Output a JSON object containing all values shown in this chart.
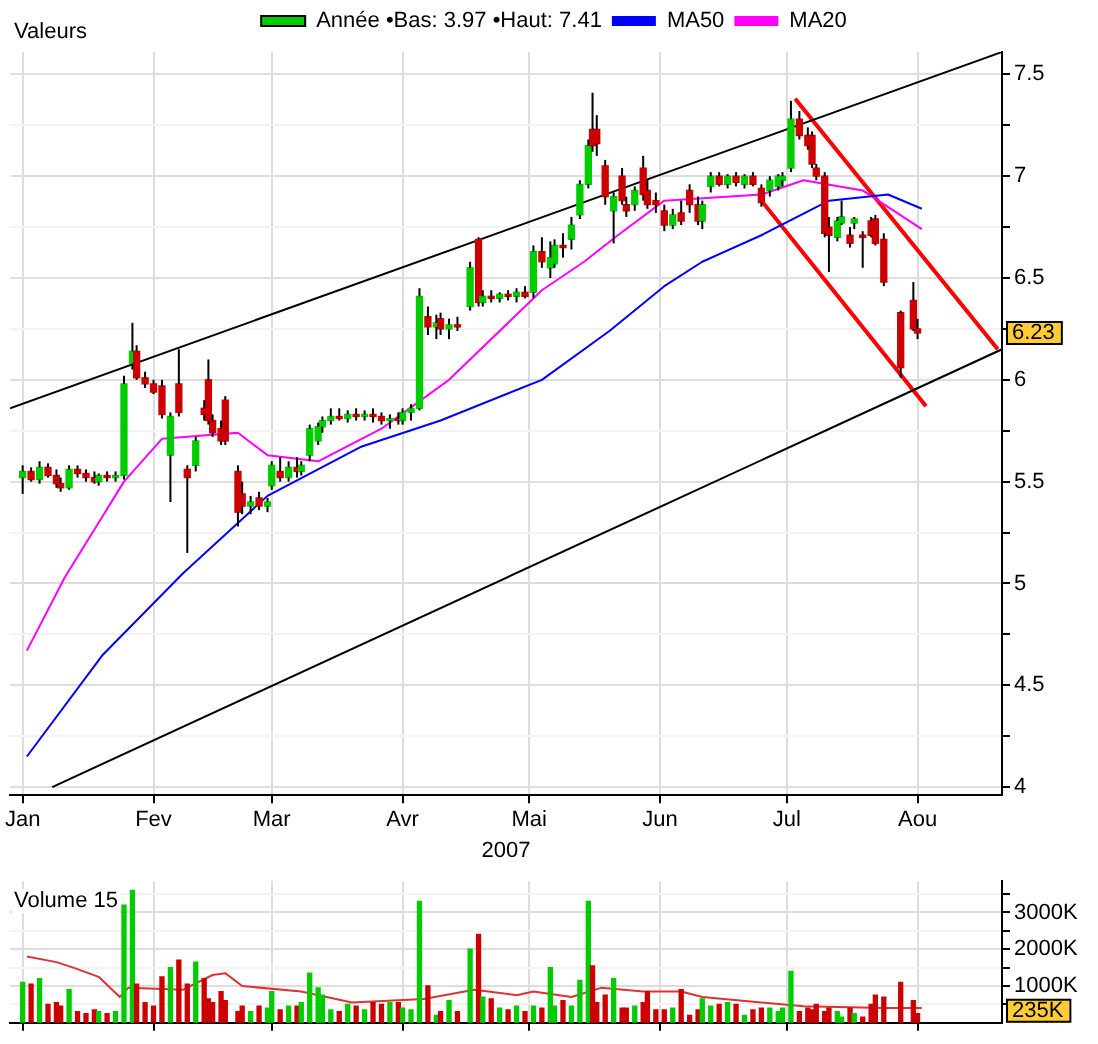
{
  "chart_data": [
    {
      "type": "candlestick",
      "title": "Valeurs",
      "xlabel": "2007",
      "legend": "top",
      "grid": true,
      "marker": "none",
      "xlim": [
        "2006-12-29",
        "2007-08-21"
      ],
      "xticks": [
        {
          "value": "2007-01-01",
          "label": "Jan"
        },
        {
          "value": "2007-02-01",
          "label": "Fev"
        },
        {
          "value": "2007-03-01",
          "label": "Mar"
        },
        {
          "value": "2007-04-01",
          "label": "Avr"
        },
        {
          "value": "2007-05-01",
          "label": "Mai"
        },
        {
          "value": "2007-06-01",
          "label": "Jun"
        },
        {
          "value": "2007-07-01",
          "label": "Jul"
        },
        {
          "value": "2007-08-01",
          "label": "Aou"
        }
      ],
      "ylim": [
        3.96,
        7.61
      ],
      "yticks": [
        4,
        {
          "value": 4.25,
          "label": null
        },
        4.5,
        {
          "value": 4.75,
          "label": null
        },
        5,
        {
          "value": 5.25,
          "label": null
        },
        5.5,
        {
          "value": 5.75,
          "label": null
        },
        6,
        {
          "value": 6.25,
          "label": null
        },
        6.5,
        {
          "value": 6.75,
          "label": null
        },
        7,
        {
          "value": 7.25,
          "label": null
        },
        7.5
      ],
      "annotations": [
        "6.23"
      ],
      "series": [
        {
          "name": "Année •Bas: 3.97 •Haut: 7.41",
          "color": "#000000",
          "colors": [
            "#00cc00",
            "#cc0000",
            "#00cc00",
            "#cc0000",
            "#cc0000",
            "#cc0000",
            "#00cc00",
            "#cc0000",
            "#cc0000",
            "#cc0000",
            "#00cc00",
            "#cc0000",
            "#00cc00",
            "#00cc00",
            "#00cc00",
            "#cc0000",
            "#cc0000",
            "#cc0000",
            "#cc0000",
            "#00cc00",
            "#cc0000",
            "#cc0000",
            "#00cc00",
            "#cc0000",
            "#cc0000",
            "#cc0000",
            "#cc0000",
            "#cc0000",
            "#cc0000",
            "#cc0000",
            "#00cc00",
            "#cc0000",
            "#00cc00",
            "#00cc00",
            "#cc0000",
            "#00cc00",
            "#cc0000",
            "#00cc00",
            "#00cc00",
            "#00cc00",
            "#00cc00",
            "#00cc00",
            "#cc0000",
            "#00cc00",
            "#cc0000",
            "#00cc00",
            "#cc0000",
            "#cc0000",
            "#00cc00",
            "#cc0000",
            "#00cc00",
            "#00cc00",
            "#00cc00",
            "#cc0000",
            "#00cc00",
            "#cc0000",
            "#00cc00",
            "#cc0000",
            "#00cc00",
            "#cc0000",
            "#00cc00",
            "#cc0000",
            "#00cc00",
            "#cc0000",
            "#00cc00",
            "#cc0000",
            "#00cc00",
            "#cc0000",
            "#00cc00",
            "#00cc00",
            "#cc0000",
            "#00cc00",
            "#00cc00",
            "#00cc00",
            "#cc0000",
            "#cc0000",
            "#cc0000",
            "#00cc00",
            "#cc0000",
            "#cc0000",
            "#00cc00",
            "#cc0000",
            "#cc0000",
            "#cc0000",
            "#cc0000",
            "#00cc00",
            "#cc0000",
            "#cc0000",
            "#cc0000",
            "#00cc00",
            "#00cc00",
            "#cc0000",
            "#00cc00",
            "#cc0000",
            "#00cc00",
            "#cc0000",
            "#cc0000",
            "#00cc00",
            "#00cc00",
            "#00cc00",
            "#00cc00",
            "#cc0000",
            "#cc0000",
            "#cc0000",
            "#cc0000",
            "#cc0000",
            "#cc0000",
            "#00cc00",
            "#00cc00",
            "#cc0000",
            "#00cc00",
            "#cc0000",
            "#cc0000",
            "#cc0000",
            "#cc0000",
            "#cc0000",
            "#cc0000",
            "#cc0000"
          ],
          "x": [
            "2007-01-01",
            "2007-01-03",
            "2007-01-05",
            "2007-01-07",
            "2007-01-09",
            "2007-01-10",
            "2007-01-12",
            "2007-01-14",
            "2007-01-16",
            "2007-01-18",
            "2007-01-19",
            "2007-01-21",
            "2007-01-23",
            "2007-01-25",
            "2007-01-27",
            "2007-01-28",
            "2007-01-30",
            "2007-02-01",
            "2007-02-03",
            "2007-02-05",
            "2007-02-07",
            "2007-02-09",
            "2007-02-11",
            "2007-02-13",
            "2007-02-14",
            "2007-02-15",
            "2007-02-17",
            "2007-02-18",
            "2007-02-21",
            "2007-02-22",
            "2007-02-24",
            "2007-02-26",
            "2007-02-28",
            "2007-03-01",
            "2007-03-03",
            "2007-03-05",
            "2007-03-07",
            "2007-03-08",
            "2007-03-10",
            "2007-03-12",
            "2007-03-13",
            "2007-03-15",
            "2007-03-17",
            "2007-03-19",
            "2007-03-21",
            "2007-03-23",
            "2007-03-25",
            "2007-03-27",
            "2007-03-29",
            "2007-03-31",
            "2007-04-01",
            "2007-04-03",
            "2007-04-05",
            "2007-04-07",
            "2007-04-09",
            "2007-04-10",
            "2007-04-12",
            "2007-04-14",
            "2007-04-17",
            "2007-04-19",
            "2007-04-20",
            "2007-04-22",
            "2007-04-24",
            "2007-04-26",
            "2007-04-28",
            "2007-04-30",
            "2007-05-02",
            "2007-05-04",
            "2007-05-06",
            "2007-05-07",
            "2007-05-09",
            "2007-05-11",
            "2007-05-13",
            "2007-05-15",
            "2007-05-16",
            "2007-05-17",
            "2007-05-19",
            "2007-05-21",
            "2007-05-23",
            "2007-05-24",
            "2007-05-26",
            "2007-05-28",
            "2007-05-29",
            "2007-05-31",
            "2007-06-02",
            "2007-06-04",
            "2007-06-06",
            "2007-06-08",
            "2007-06-10",
            "2007-06-11",
            "2007-06-13",
            "2007-06-15",
            "2007-06-17",
            "2007-06-19",
            "2007-06-21",
            "2007-06-23",
            "2007-06-25",
            "2007-06-27",
            "2007-06-29",
            "2007-06-30",
            "2007-07-02",
            "2007-07-04",
            "2007-07-06",
            "2007-07-07",
            "2007-07-08",
            "2007-07-10",
            "2007-07-11",
            "2007-07-13",
            "2007-07-14",
            "2007-07-16",
            "2007-07-17",
            "2007-07-19",
            "2007-07-21",
            "2007-07-22",
            "2007-07-24",
            "2007-07-28",
            "2007-07-31",
            "2007-08-01"
          ],
          "ohlc": [
            [
              5.52,
              5.58,
              5.44,
              5.55
            ],
            [
              5.55,
              5.57,
              5.5,
              5.51
            ],
            [
              5.51,
              5.6,
              5.49,
              5.57
            ],
            [
              5.57,
              5.59,
              5.52,
              5.53
            ],
            [
              5.53,
              5.56,
              5.47,
              5.49
            ],
            [
              5.49,
              5.52,
              5.45,
              5.47
            ],
            [
              5.47,
              5.58,
              5.46,
              5.56
            ],
            [
              5.56,
              5.58,
              5.52,
              5.54
            ],
            [
              5.54,
              5.56,
              5.5,
              5.52
            ],
            [
              5.52,
              5.55,
              5.49,
              5.5
            ],
            [
              5.5,
              5.54,
              5.48,
              5.53
            ],
            [
              5.53,
              5.55,
              5.5,
              5.52
            ],
            [
              5.52,
              5.55,
              5.5,
              5.53
            ],
            [
              5.53,
              6.02,
              5.51,
              5.98
            ],
            [
              6.08,
              6.28,
              6.05,
              6.14
            ],
            [
              6.14,
              6.17,
              6.0,
              6.01
            ],
            [
              6.01,
              6.04,
              5.96,
              5.98
            ],
            [
              5.98,
              6.0,
              5.93,
              5.94
            ],
            [
              5.97,
              6.0,
              5.81,
              5.83
            ],
            [
              5.63,
              5.84,
              5.4,
              5.82
            ],
            [
              5.98,
              6.15,
              5.82,
              5.84
            ],
            [
              5.56,
              5.58,
              5.15,
              5.52
            ],
            [
              5.58,
              5.72,
              5.55,
              5.7
            ],
            [
              5.86,
              5.9,
              5.8,
              5.83
            ],
            [
              6.0,
              6.1,
              5.78,
              5.8
            ],
            [
              5.8,
              5.83,
              5.72,
              5.74
            ],
            [
              5.76,
              5.8,
              5.68,
              5.7
            ],
            [
              5.9,
              5.92,
              5.68,
              5.7
            ],
            [
              5.55,
              5.58,
              5.28,
              5.35
            ],
            [
              5.44,
              5.5,
              5.34,
              5.38
            ],
            [
              5.38,
              5.43,
              5.34,
              5.4
            ],
            [
              5.42,
              5.45,
              5.36,
              5.38
            ],
            [
              5.38,
              5.42,
              5.35,
              5.4
            ],
            [
              5.48,
              5.6,
              5.46,
              5.58
            ],
            [
              5.55,
              5.62,
              5.5,
              5.52
            ],
            [
              5.52,
              5.6,
              5.5,
              5.57
            ],
            [
              5.57,
              5.62,
              5.52,
              5.55
            ],
            [
              5.55,
              5.6,
              5.53,
              5.58
            ],
            [
              5.63,
              5.78,
              5.6,
              5.76
            ],
            [
              5.7,
              5.79,
              5.68,
              5.77
            ],
            [
              5.77,
              5.82,
              5.74,
              5.8
            ],
            [
              5.8,
              5.86,
              5.78,
              5.82
            ],
            [
              5.82,
              5.86,
              5.8,
              5.81
            ],
            [
              5.81,
              5.85,
              5.79,
              5.83
            ],
            [
              5.83,
              5.86,
              5.8,
              5.82
            ],
            [
              5.82,
              5.85,
              5.8,
              5.83
            ],
            [
              5.83,
              5.86,
              5.79,
              5.82
            ],
            [
              5.82,
              5.84,
              5.78,
              5.8
            ],
            [
              5.8,
              5.83,
              5.76,
              5.81
            ],
            [
              5.81,
              5.84,
              5.78,
              5.8
            ],
            [
              5.8,
              5.86,
              5.78,
              5.84
            ],
            [
              5.84,
              5.88,
              5.8,
              5.86
            ],
            [
              5.86,
              6.45,
              5.85,
              6.41
            ],
            [
              6.31,
              6.36,
              6.22,
              6.26
            ],
            [
              6.26,
              6.32,
              6.2,
              6.28
            ],
            [
              6.3,
              6.33,
              6.22,
              6.25
            ],
            [
              6.25,
              6.3,
              6.2,
              6.27
            ],
            [
              6.27,
              6.31,
              6.24,
              6.26
            ],
            [
              6.36,
              6.58,
              6.34,
              6.55
            ],
            [
              6.69,
              6.7,
              6.36,
              6.38
            ],
            [
              6.38,
              6.44,
              6.36,
              6.41
            ],
            [
              6.41,
              6.44,
              6.38,
              6.4
            ],
            [
              6.4,
              6.43,
              6.38,
              6.42
            ],
            [
              6.42,
              6.44,
              6.39,
              6.41
            ],
            [
              6.41,
              6.45,
              6.38,
              6.43
            ],
            [
              6.43,
              6.46,
              6.4,
              6.41
            ],
            [
              6.43,
              6.66,
              6.4,
              6.63
            ],
            [
              6.63,
              6.7,
              6.55,
              6.58
            ],
            [
              6.55,
              6.68,
              6.5,
              6.6
            ],
            [
              6.57,
              6.69,
              6.55,
              6.66
            ],
            [
              6.66,
              6.72,
              6.6,
              6.65
            ],
            [
              6.69,
              6.8,
              6.64,
              6.76
            ],
            [
              6.81,
              6.98,
              6.79,
              6.96
            ],
            [
              6.96,
              7.18,
              6.94,
              7.15
            ],
            [
              7.23,
              7.41,
              7.12,
              7.15
            ],
            [
              7.23,
              7.3,
              7.1,
              7.16
            ],
            [
              7.05,
              7.08,
              6.86,
              6.9
            ],
            [
              6.83,
              6.92,
              6.67,
              6.9
            ],
            [
              7.0,
              7.04,
              6.86,
              6.88
            ],
            [
              6.86,
              6.9,
              6.8,
              6.83
            ],
            [
              6.86,
              6.95,
              6.83,
              6.93
            ],
            [
              7.04,
              7.1,
              6.88,
              6.91
            ],
            [
              6.93,
              6.98,
              6.84,
              6.86
            ],
            [
              6.88,
              6.92,
              6.82,
              6.86
            ],
            [
              6.83,
              6.86,
              6.73,
              6.76
            ],
            [
              6.76,
              6.84,
              6.74,
              6.81
            ],
            [
              6.82,
              6.88,
              6.76,
              6.78
            ],
            [
              6.93,
              6.96,
              6.82,
              6.86
            ],
            [
              6.86,
              6.9,
              6.76,
              6.78
            ],
            [
              6.78,
              6.88,
              6.74,
              6.86
            ],
            [
              6.95,
              7.02,
              6.92,
              7.0
            ],
            [
              7.0,
              7.02,
              6.95,
              6.96
            ],
            [
              6.96,
              7.01,
              6.94,
              7.0
            ],
            [
              7.0,
              7.02,
              6.95,
              6.97
            ],
            [
              6.96,
              7.01,
              6.94,
              7.0
            ],
            [
              7.0,
              7.02,
              6.95,
              6.96
            ],
            [
              6.94,
              6.96,
              6.85,
              6.87
            ],
            [
              6.93,
              7.0,
              6.9,
              6.98
            ],
            [
              6.95,
              7.01,
              6.93,
              7.0
            ],
            [
              6.98,
              7.02,
              6.95,
              7.0
            ],
            [
              7.04,
              7.37,
              7.02,
              7.28
            ],
            [
              7.28,
              7.32,
              7.18,
              7.2
            ],
            [
              7.2,
              7.24,
              7.13,
              7.15
            ],
            [
              7.2,
              7.22,
              7.04,
              7.06
            ],
            [
              7.04,
              7.06,
              6.98,
              7.0
            ],
            [
              7.0,
              7.02,
              6.7,
              6.72
            ],
            [
              6.75,
              6.8,
              6.53,
              6.71
            ],
            [
              6.7,
              6.8,
              6.68,
              6.78
            ],
            [
              6.77,
              6.88,
              6.76,
              6.8
            ],
            [
              6.71,
              6.75,
              6.65,
              6.67
            ],
            [
              6.77,
              6.8,
              6.74,
              6.79
            ],
            [
              6.71,
              6.73,
              6.55,
              6.7
            ],
            [
              6.78,
              6.8,
              6.7,
              6.71
            ],
            [
              6.79,
              6.81,
              6.66,
              6.67
            ],
            [
              6.69,
              6.72,
              6.46,
              6.48
            ],
            [
              6.33,
              6.34,
              6.01,
              6.06
            ],
            [
              6.39,
              6.48,
              6.24,
              6.25
            ],
            [
              6.25,
              6.3,
              6.2,
              6.23
            ]
          ]
        },
        {
          "type": "line",
          "name": "MA50",
          "color": "#0000ff",
          "x": [
            "2007-01-02",
            "2007-01-20",
            "2007-02-08",
            "2007-02-28",
            "2007-03-22",
            "2007-04-10",
            "2007-05-04",
            "2007-05-20",
            "2007-06-02",
            "2007-06-11",
            "2007-06-25",
            "2007-07-11",
            "2007-07-25",
            "2007-08-02"
          ],
          "values": [
            4.15,
            4.65,
            5.05,
            5.43,
            5.67,
            5.8,
            6.0,
            6.24,
            6.46,
            6.58,
            6.71,
            6.88,
            6.91,
            6.84
          ]
        },
        {
          "type": "line",
          "name": "MA20",
          "color": "#ff00ff",
          "x": [
            "2007-01-02",
            "2007-01-11",
            "2007-01-25",
            "2007-02-03",
            "2007-02-21",
            "2007-02-28",
            "2007-03-12",
            "2007-03-27",
            "2007-04-12",
            "2007-05-04",
            "2007-05-14",
            "2007-05-22",
            "2007-06-02",
            "2007-06-25",
            "2007-07-05",
            "2007-07-19",
            "2007-08-02"
          ],
          "values": [
            4.67,
            5.03,
            5.5,
            5.71,
            5.74,
            5.63,
            5.6,
            5.76,
            6.0,
            6.44,
            6.58,
            6.71,
            6.88,
            6.91,
            6.98,
            6.93,
            6.74
          ]
        },
        {
          "type": "line",
          "color": "#000000",
          "x": [
            "2006-12-29",
            "2007-08-21"
          ],
          "values": [
            5.86,
            7.61
          ]
        },
        {
          "type": "line",
          "color": "#000000",
          "x": [
            "2007-01-08",
            "2007-08-21"
          ],
          "values": [
            4.0,
            6.15
          ]
        },
        {
          "type": "line",
          "color": "#ff0000",
          "x": [
            "2007-07-03",
            "2007-08-20"
          ],
          "values": [
            7.38,
            6.15
          ]
        },
        {
          "type": "line",
          "color": "#ff0000",
          "x": [
            "2007-06-25",
            "2007-08-03"
          ],
          "values": [
            6.88,
            5.87
          ]
        }
      ]
    },
    {
      "type": "bar",
      "title": "Volume 15",
      "grid": true,
      "marker": "none",
      "tick_labels": "y",
      "xlim": [
        "2006-12-29",
        "2007-08-21"
      ],
      "xticks": [
        {
          "value": "2007-01-01",
          "label": null
        },
        {
          "value": "2007-02-01",
          "label": null
        },
        {
          "value": "2007-03-01",
          "label": null
        },
        {
          "value": "2007-04-01",
          "label": null
        },
        {
          "value": "2007-05-01",
          "label": null
        },
        {
          "value": "2007-06-01",
          "label": null
        },
        {
          "value": "2007-07-01",
          "label": null
        },
        {
          "value": "2007-08-01",
          "label": null
        }
      ],
      "ylim": [
        0,
        3850
      ],
      "yticks": [
        {
          "value": 500,
          "label": null
        },
        {
          "value": 1000,
          "label": "1000K"
        },
        {
          "value": 1500,
          "label": null
        },
        {
          "value": 2000,
          "label": "2000K"
        },
        {
          "value": 2500,
          "label": null
        },
        {
          "value": 3000,
          "label": "3000K"
        },
        {
          "value": 3500,
          "label": null
        }
      ],
      "annotations": [
        "235K"
      ],
      "series": [
        {
          "x": [
            "2007-01-01",
            "2007-01-03",
            "2007-01-05",
            "2007-01-07",
            "2007-01-09",
            "2007-01-10",
            "2007-01-12",
            "2007-01-14",
            "2007-01-16",
            "2007-01-18",
            "2007-01-19",
            "2007-01-21",
            "2007-01-23",
            "2007-01-25",
            "2007-01-27",
            "2007-01-28",
            "2007-01-30",
            "2007-02-01",
            "2007-02-03",
            "2007-02-05",
            "2007-02-07",
            "2007-02-09",
            "2007-02-11",
            "2007-02-13",
            "2007-02-14",
            "2007-02-15",
            "2007-02-17",
            "2007-02-18",
            "2007-02-21",
            "2007-02-22",
            "2007-02-24",
            "2007-02-26",
            "2007-02-28",
            "2007-03-01",
            "2007-03-03",
            "2007-03-05",
            "2007-03-07",
            "2007-03-08",
            "2007-03-10",
            "2007-03-12",
            "2007-03-13",
            "2007-03-15",
            "2007-03-17",
            "2007-03-19",
            "2007-03-21",
            "2007-03-23",
            "2007-03-25",
            "2007-03-27",
            "2007-03-29",
            "2007-03-31",
            "2007-04-01",
            "2007-04-03",
            "2007-04-05",
            "2007-04-07",
            "2007-04-09",
            "2007-04-10",
            "2007-04-12",
            "2007-04-14",
            "2007-04-17",
            "2007-04-19",
            "2007-04-20",
            "2007-04-22",
            "2007-04-24",
            "2007-04-26",
            "2007-04-28",
            "2007-04-30",
            "2007-05-02",
            "2007-05-04",
            "2007-05-06",
            "2007-05-07",
            "2007-05-09",
            "2007-05-11",
            "2007-05-13",
            "2007-05-15",
            "2007-05-16",
            "2007-05-17",
            "2007-05-19",
            "2007-05-21",
            "2007-05-23",
            "2007-05-24",
            "2007-05-26",
            "2007-05-28",
            "2007-05-29",
            "2007-05-31",
            "2007-06-02",
            "2007-06-04",
            "2007-06-06",
            "2007-06-08",
            "2007-06-10",
            "2007-06-11",
            "2007-06-13",
            "2007-06-15",
            "2007-06-17",
            "2007-06-19",
            "2007-06-21",
            "2007-06-23",
            "2007-06-25",
            "2007-06-27",
            "2007-06-29",
            "2007-06-30",
            "2007-07-02",
            "2007-07-04",
            "2007-07-06",
            "2007-07-07",
            "2007-07-08",
            "2007-07-10",
            "2007-07-11",
            "2007-07-13",
            "2007-07-14",
            "2007-07-16",
            "2007-07-17",
            "2007-07-19",
            "2007-07-21",
            "2007-07-22",
            "2007-07-24",
            "2007-07-28",
            "2007-07-31",
            "2007-08-01"
          ],
          "values": [
            1100,
            1050,
            1200,
            500,
            550,
            450,
            900,
            300,
            250,
            350,
            300,
            250,
            300,
            3200,
            3600,
            1050,
            550,
            450,
            1250,
            1500,
            1700,
            1050,
            1650,
            1200,
            650,
            550,
            850,
            600,
            300,
            450,
            300,
            450,
            400,
            850,
            350,
            450,
            450,
            550,
            1350,
            950,
            750,
            350,
            300,
            500,
            450,
            350,
            550,
            500,
            550,
            550,
            400,
            350,
            3300,
            1000,
            200,
            300,
            600,
            300,
            2000,
            2400,
            700,
            650,
            400,
            350,
            450,
            300,
            450,
            400,
            1500,
            450,
            600,
            450,
            1150,
            3300,
            1550,
            550,
            750,
            1200,
            400,
            400,
            450,
            550,
            850,
            350,
            350,
            400,
            900,
            200,
            350,
            650,
            450,
            500,
            550,
            500,
            200,
            350,
            400,
            400,
            300,
            400,
            1400,
            300,
            400,
            350,
            500,
            300,
            400,
            300,
            150,
            400,
            250,
            150,
            500,
            750,
            700,
            1100,
            600,
            250
          ],
          "colors": [
            "#00cc00",
            "#cc0000",
            "#00cc00",
            "#cc0000",
            "#cc0000",
            "#cc0000",
            "#00cc00",
            "#cc0000",
            "#cc0000",
            "#cc0000",
            "#00cc00",
            "#cc0000",
            "#00cc00",
            "#00cc00",
            "#00cc00",
            "#cc0000",
            "#cc0000",
            "#cc0000",
            "#cc0000",
            "#00cc00",
            "#cc0000",
            "#cc0000",
            "#00cc00",
            "#cc0000",
            "#cc0000",
            "#cc0000",
            "#cc0000",
            "#cc0000",
            "#cc0000",
            "#cc0000",
            "#00cc00",
            "#cc0000",
            "#00cc00",
            "#00cc00",
            "#cc0000",
            "#00cc00",
            "#cc0000",
            "#00cc00",
            "#00cc00",
            "#00cc00",
            "#00cc00",
            "#00cc00",
            "#cc0000",
            "#00cc00",
            "#cc0000",
            "#00cc00",
            "#cc0000",
            "#cc0000",
            "#00cc00",
            "#cc0000",
            "#00cc00",
            "#00cc00",
            "#00cc00",
            "#cc0000",
            "#00cc00",
            "#cc0000",
            "#00cc00",
            "#cc0000",
            "#00cc00",
            "#cc0000",
            "#00cc00",
            "#cc0000",
            "#00cc00",
            "#cc0000",
            "#00cc00",
            "#cc0000",
            "#00cc00",
            "#cc0000",
            "#00cc00",
            "#00cc00",
            "#cc0000",
            "#00cc00",
            "#00cc00",
            "#00cc00",
            "#cc0000",
            "#cc0000",
            "#cc0000",
            "#00cc00",
            "#cc0000",
            "#cc0000",
            "#00cc00",
            "#cc0000",
            "#cc0000",
            "#cc0000",
            "#cc0000",
            "#00cc00",
            "#cc0000",
            "#cc0000",
            "#cc0000",
            "#00cc00",
            "#00cc00",
            "#cc0000",
            "#00cc00",
            "#cc0000",
            "#00cc00",
            "#cc0000",
            "#cc0000",
            "#00cc00",
            "#00cc00",
            "#00cc00",
            "#00cc00",
            "#cc0000",
            "#cc0000",
            "#cc0000",
            "#cc0000",
            "#cc0000",
            "#cc0000",
            "#00cc00",
            "#00cc00",
            "#cc0000",
            "#00cc00",
            "#cc0000",
            "#cc0000",
            "#cc0000",
            "#cc0000",
            "#cc0000",
            "#cc0000",
            "#cc0000"
          ]
        },
        {
          "type": "line",
          "color": "#dd3333",
          "x": [
            "2007-01-02",
            "2007-01-09",
            "2007-01-13",
            "2007-01-19",
            "2007-01-24",
            "2007-01-26",
            "2007-02-08",
            "2007-02-15",
            "2007-02-18",
            "2007-02-22",
            "2007-03-08",
            "2007-03-20",
            "2007-04-06",
            "2007-04-18",
            "2007-04-28",
            "2007-05-02",
            "2007-05-11",
            "2007-05-18",
            "2007-05-28",
            "2007-06-06",
            "2007-06-11",
            "2007-07-05",
            "2007-07-24",
            "2007-08-02"
          ],
          "values": [
            1800,
            1650,
            1500,
            1250,
            700,
            950,
            900,
            1300,
            1350,
            1000,
            850,
            550,
            650,
            900,
            750,
            850,
            700,
            950,
            850,
            850,
            700,
            450,
            400,
            400
          ]
        }
      ]
    }
  ]
}
